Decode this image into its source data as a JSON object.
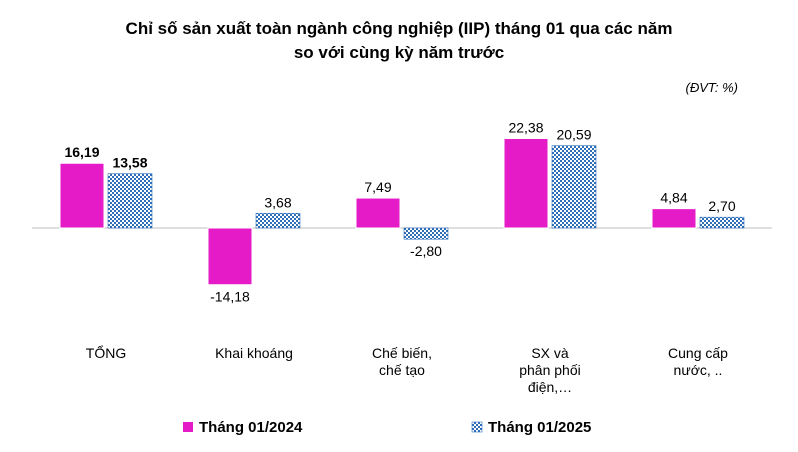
{
  "chart_data": {
    "type": "bar",
    "title_lines": [
      "Chỉ số sản xuất toàn ngành công nghiệp (IIP) tháng 01 qua các năm",
      "so với cùng kỳ năm trước"
    ],
    "unit_note": "(ĐVT: %)",
    "categories": [
      [
        "TỔNG"
      ],
      [
        "Khai  khoáng"
      ],
      [
        "Chế biến,",
        "chế tạo"
      ],
      [
        "SX và",
        "phân phối",
        "điện,…"
      ],
      [
        "Cung cấp",
        "nước, .."
      ]
    ],
    "series": [
      {
        "name": "Tháng 01/2024",
        "values": [
          16.19,
          -14.18,
          7.49,
          22.38,
          4.84
        ],
        "labels": [
          "16,19",
          "-14,18",
          "7,49",
          "22,38",
          "4,84"
        ],
        "color": "#E61BC8",
        "pattern": "solid"
      },
      {
        "name": "Tháng 01/2025",
        "values": [
          13.58,
          3.68,
          -2.8,
          20.59,
          2.7
        ],
        "labels": [
          "13,58",
          "3,68",
          "-2,80",
          "20,59",
          "2,70"
        ],
        "color": "#2F6FB8",
        "pattern": "checker"
      }
    ],
    "bold_labels_category_index": 0,
    "ylim": [
      -18,
      24
    ],
    "grid": false,
    "legend_position": "bottom"
  }
}
